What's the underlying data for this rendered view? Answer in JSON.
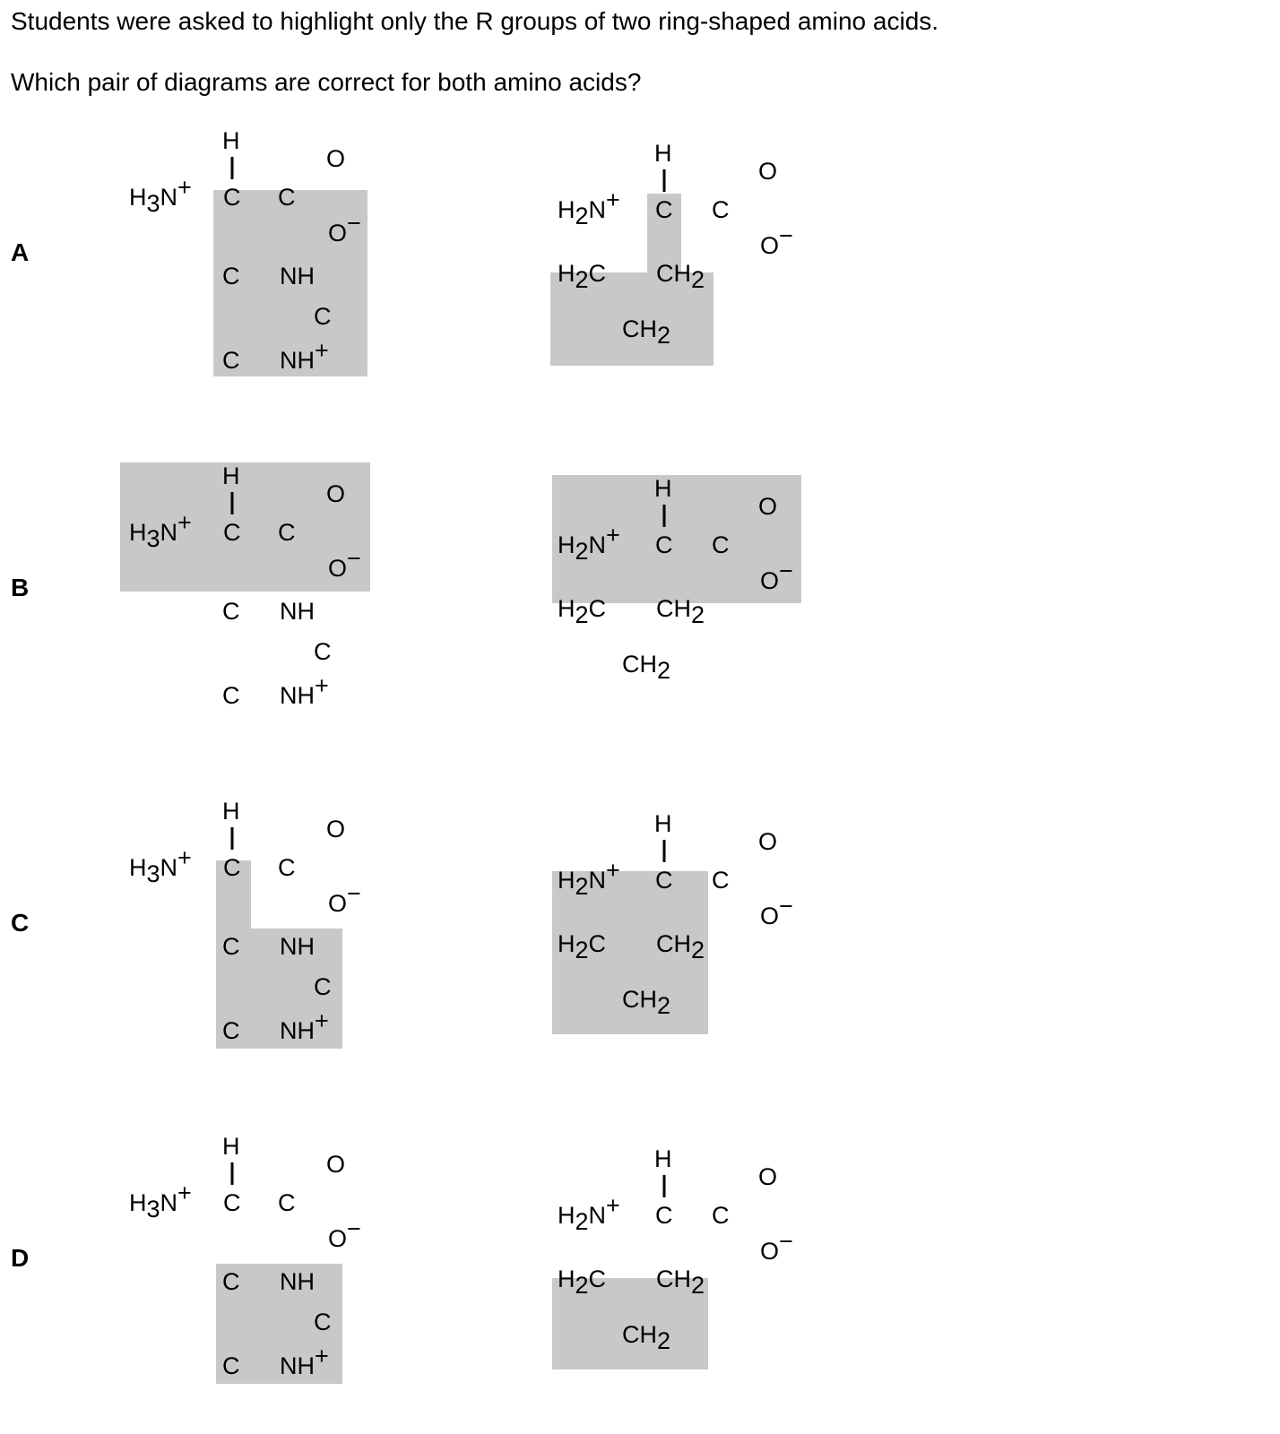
{
  "question": {
    "line1": "Students were asked to highlight only the R groups of two ring-shaped amino acids.",
    "line2": "Which pair of diagrams are correct for both amino acids?"
  },
  "highlight_color": "#c8c8c8",
  "options": [
    {
      "letter": "A",
      "histidine_highlight": "side chain plus alpha carbon and carboxyl group",
      "proline_highlight": "ring with alpha carbon"
    },
    {
      "letter": "B",
      "histidine_highlight": "amino, alpha carbon and carboxyl groups",
      "proline_highlight": "amino, alpha carbon and carboxyl groups"
    },
    {
      "letter": "C",
      "histidine_highlight": "side chain ring with alpha carbon",
      "proline_highlight": "whole ring including nitrogen and alpha carbon"
    },
    {
      "letter": "D",
      "histidine_highlight": "side chain ring only",
      "proline_highlight": "three CH2 groups only"
    }
  ],
  "atoms": {
    "H": "H",
    "C": "C",
    "O": "O",
    "N": "N",
    "NH": "NH",
    "sub2": "2",
    "sub3": "3",
    "plus": "+",
    "minus": "−"
  }
}
